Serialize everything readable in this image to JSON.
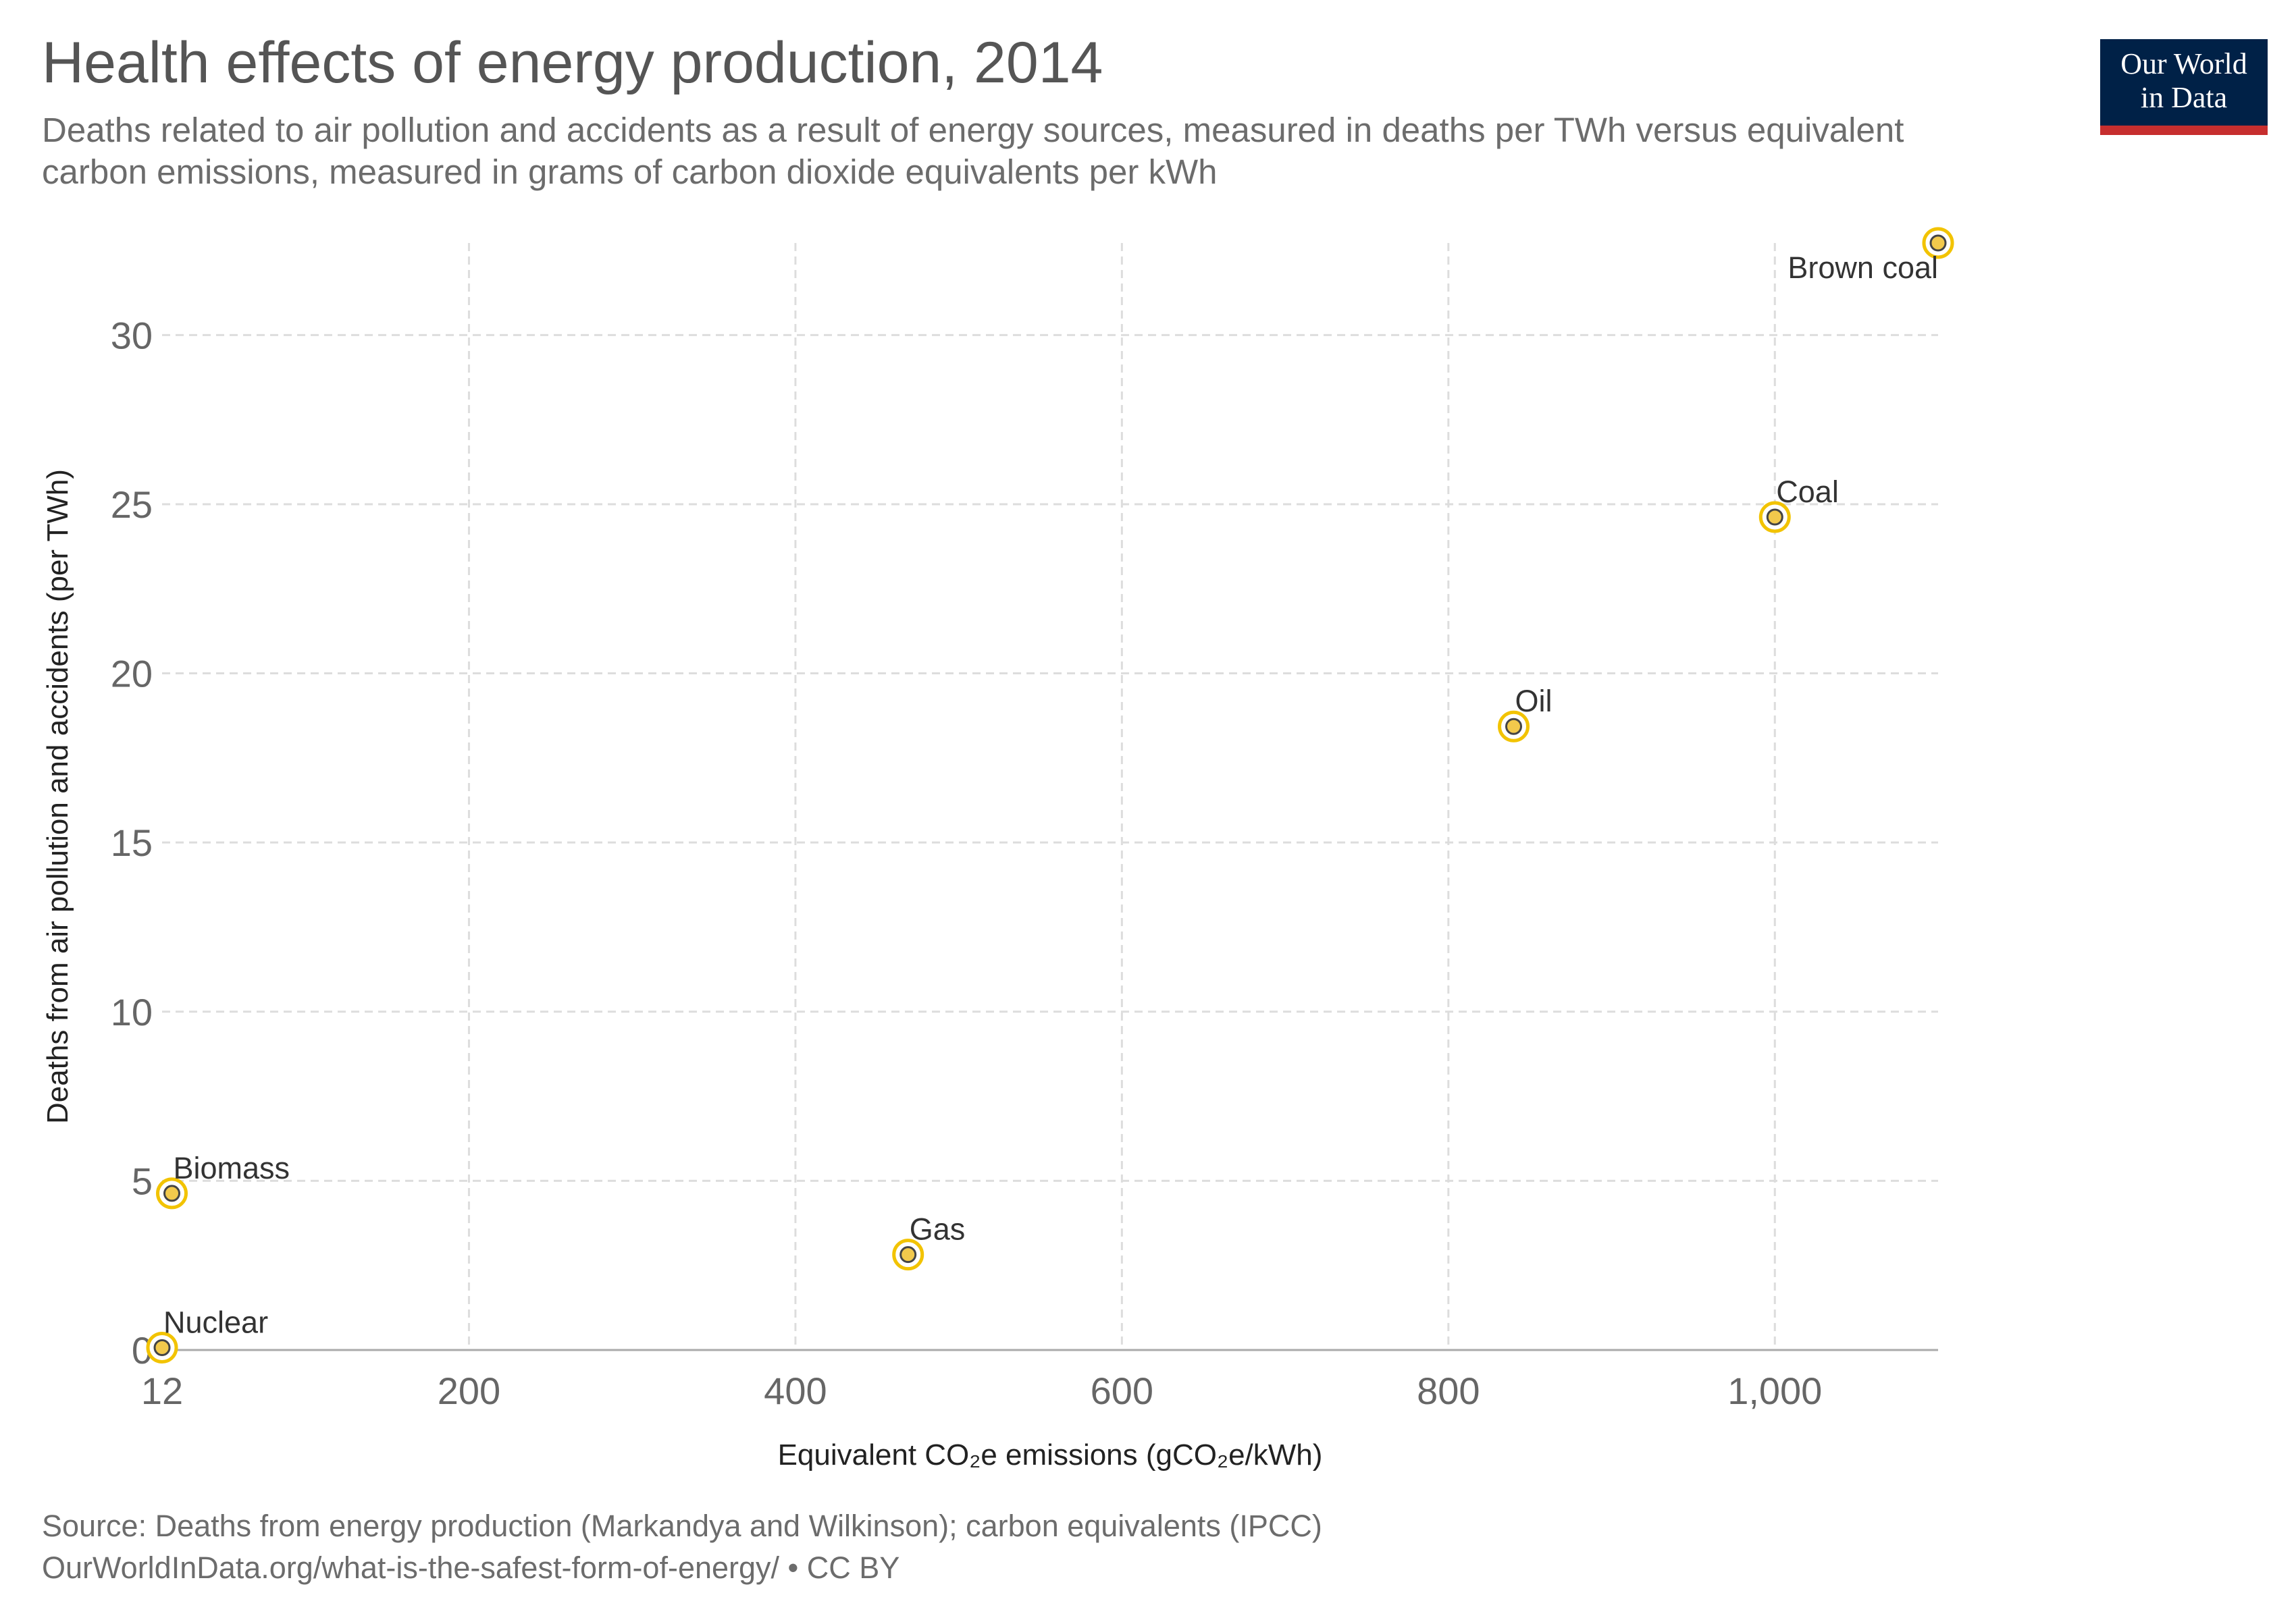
{
  "header": {
    "title": "Health effects of energy production, 2014",
    "subtitle": "Deaths related to air pollution and accidents as a result of energy sources, measured in deaths per TWh versus equivalent carbon emissions, measured in grams of carbon dioxide equivalents per kWh"
  },
  "logo": {
    "line1": "Our World",
    "line2": "in Data",
    "colors": {
      "background": "#002147",
      "stripe": "#c62e2e"
    }
  },
  "footer": {
    "source": "Source: Deaths from energy production (Markandya and Wilkinson); carbon equivalents (IPCC)",
    "link": "OurWorldInData.org/what-is-the-safest-form-of-energy/ • CC BY"
  },
  "chart_data": {
    "type": "scatter",
    "xlabel": "Equivalent CO₂e emissions (gCO₂e/kWh)",
    "ylabel": "Deaths from air pollution and accidents (per TWh)",
    "xlim": [
      12,
      1100
    ],
    "ylim": [
      0,
      32.72
    ],
    "xticks": [
      12,
      200,
      400,
      600,
      800,
      1000
    ],
    "xtick_labels": [
      "12",
      "200",
      "400",
      "600",
      "800",
      "1,000"
    ],
    "yticks": [
      0,
      5,
      10,
      15,
      20,
      25,
      30
    ],
    "ytick_labels": [
      "0",
      "5",
      "10",
      "15",
      "20",
      "25",
      "30"
    ],
    "grid": true,
    "marker_fill": "#f2c94c",
    "marker_ring": "#f2c300",
    "points": [
      {
        "label": "Nuclear",
        "x": 12,
        "y": 0.07
      },
      {
        "label": "Biomass",
        "x": 18,
        "y": 4.63
      },
      {
        "label": "Gas",
        "x": 469,
        "y": 2.82
      },
      {
        "label": "Oil",
        "x": 840,
        "y": 18.43
      },
      {
        "label": "Coal",
        "x": 1000,
        "y": 24.62
      },
      {
        "label": "Brown coal",
        "x": 1100,
        "y": 32.72
      }
    ]
  }
}
